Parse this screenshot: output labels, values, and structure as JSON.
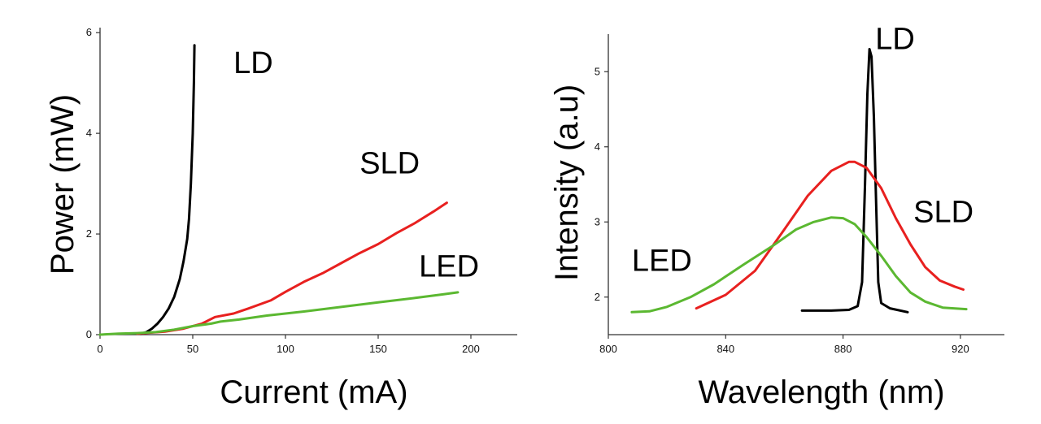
{
  "chart_data": [
    {
      "type": "line",
      "id": "power-current",
      "xlabel": "Current (mA)",
      "ylabel": "Power (mW)",
      "xlim": [
        0,
        225
      ],
      "ylim": [
        0,
        6.1
      ],
      "xticks": [
        0,
        50,
        100,
        150,
        200
      ],
      "yticks": [
        0,
        2,
        4,
        6
      ],
      "series": [
        {
          "name": "LD",
          "color": "#000000",
          "label_at": [
            72,
            5.2
          ],
          "points": [
            [
              22,
              0.02
            ],
            [
              25,
              0.05
            ],
            [
              28,
              0.12
            ],
            [
              31,
              0.22
            ],
            [
              34,
              0.35
            ],
            [
              37,
              0.52
            ],
            [
              40,
              0.75
            ],
            [
              43,
              1.1
            ],
            [
              45,
              1.45
            ],
            [
              47,
              1.9
            ],
            [
              48,
              2.3
            ],
            [
              49,
              3.0
            ],
            [
              50,
              4.0
            ],
            [
              50.6,
              5.0
            ],
            [
              50.9,
              5.75
            ]
          ]
        },
        {
          "name": "SLD",
          "color": "#e8201f",
          "label_at": [
            140,
            3.2
          ],
          "points": [
            [
              20,
              0.02
            ],
            [
              35,
              0.06
            ],
            [
              45,
              0.12
            ],
            [
              55,
              0.22
            ],
            [
              62,
              0.35
            ],
            [
              72,
              0.42
            ],
            [
              80,
              0.52
            ],
            [
              92,
              0.68
            ],
            [
              100,
              0.85
            ],
            [
              110,
              1.05
            ],
            [
              120,
              1.22
            ],
            [
              130,
              1.42
            ],
            [
              140,
              1.62
            ],
            [
              150,
              1.8
            ],
            [
              160,
              2.02
            ],
            [
              170,
              2.22
            ],
            [
              180,
              2.45
            ],
            [
              187,
              2.62
            ]
          ]
        },
        {
          "name": "LED",
          "color": "#5bb831",
          "label_at": [
            172,
            1.15
          ],
          "points": [
            [
              0,
              0.0
            ],
            [
              10,
              0.02
            ],
            [
              20,
              0.03
            ],
            [
              30,
              0.05
            ],
            [
              40,
              0.1
            ],
            [
              50,
              0.17
            ],
            [
              60,
              0.22
            ],
            [
              65,
              0.26
            ],
            [
              75,
              0.3
            ],
            [
              90,
              0.38
            ],
            [
              110,
              0.46
            ],
            [
              130,
              0.55
            ],
            [
              150,
              0.64
            ],
            [
              170,
              0.73
            ],
            [
              185,
              0.8
            ],
            [
              193,
              0.84
            ]
          ]
        }
      ]
    },
    {
      "type": "line",
      "id": "intensity-wavelength",
      "xlabel": "Wavelength (nm)",
      "ylabel": "Intensity (a.u)",
      "xlim": [
        800,
        935
      ],
      "ylim": [
        1.5,
        5.5
      ],
      "xticks": [
        800,
        840,
        880,
        920
      ],
      "yticks": [
        2,
        3,
        4,
        5
      ],
      "series": [
        {
          "name": "LD",
          "color": "#000000",
          "label_at": [
            891,
            5.3
          ],
          "points": [
            [
              866,
              1.82
            ],
            [
              876,
              1.82
            ],
            [
              882,
              1.83
            ],
            [
              885,
              1.88
            ],
            [
              886.5,
              2.2
            ],
            [
              887.5,
              3.5
            ],
            [
              888.3,
              4.7
            ],
            [
              889,
              5.3
            ],
            [
              889.7,
              5.2
            ],
            [
              890.5,
              4.4
            ],
            [
              891.3,
              3.2
            ],
            [
              892,
              2.2
            ],
            [
              893,
              1.92
            ],
            [
              896,
              1.85
            ],
            [
              902,
              1.8
            ]
          ]
        },
        {
          "name": "SLD",
          "color": "#e8201f",
          "label_at": [
            904,
            3.0
          ],
          "points": [
            [
              830,
              1.85
            ],
            [
              840,
              2.03
            ],
            [
              850,
              2.35
            ],
            [
              860,
              2.9
            ],
            [
              868,
              3.35
            ],
            [
              876,
              3.68
            ],
            [
              882,
              3.8
            ],
            [
              884,
              3.8
            ],
            [
              888,
              3.72
            ],
            [
              893,
              3.45
            ],
            [
              898,
              3.05
            ],
            [
              903,
              2.7
            ],
            [
              908,
              2.4
            ],
            [
              913,
              2.22
            ],
            [
              918,
              2.14
            ],
            [
              921,
              2.1
            ]
          ]
        },
        {
          "name": "LED",
          "color": "#5bb831",
          "label_at": [
            808,
            2.35
          ],
          "points": [
            [
              808,
              1.8
            ],
            [
              814,
              1.81
            ],
            [
              820,
              1.87
            ],
            [
              828,
              2.0
            ],
            [
              836,
              2.17
            ],
            [
              846,
              2.43
            ],
            [
              856,
              2.68
            ],
            [
              864,
              2.9
            ],
            [
              870,
              3.0
            ],
            [
              876,
              3.06
            ],
            [
              880,
              3.05
            ],
            [
              884,
              2.97
            ],
            [
              888,
              2.8
            ],
            [
              893,
              2.55
            ],
            [
              898,
              2.28
            ],
            [
              903,
              2.06
            ],
            [
              908,
              1.94
            ],
            [
              914,
              1.86
            ],
            [
              922,
              1.84
            ]
          ]
        }
      ]
    }
  ]
}
